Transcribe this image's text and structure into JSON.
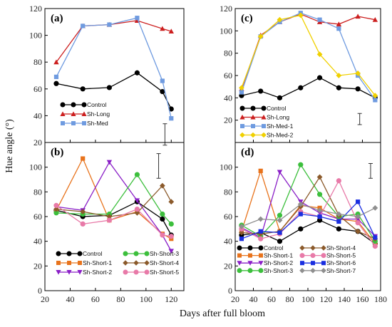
{
  "figure": {
    "xlabel": "Days after full bloom",
    "ylabel": "Hue angle (°)"
  },
  "chart_data": [
    {
      "panel": "(a)",
      "type": "line",
      "xlim": [
        20,
        130
      ],
      "ylim": [
        20,
        120
      ],
      "xticks": [
        20,
        40,
        60,
        80,
        100,
        120
      ],
      "yticks": [
        20,
        40,
        60,
        80,
        100,
        120
      ],
      "series": [
        {
          "name": "Control",
          "color": "#000000",
          "marker": "circle",
          "x": [
            29,
            50,
            71,
            93,
            113,
            120
          ],
          "y": [
            64,
            60,
            61,
            72,
            58,
            45
          ]
        },
        {
          "name": "Sh-Long",
          "color": "#cc1f1f",
          "marker": "triangle-up",
          "x": [
            29,
            50,
            71,
            93,
            113,
            120
          ],
          "y": [
            80,
            107,
            108,
            111,
            105,
            103
          ]
        },
        {
          "name": "Sh-Med",
          "color": "#6f9be0",
          "marker": "square",
          "x": [
            29,
            50,
            71,
            93,
            113,
            120
          ],
          "y": [
            69,
            107,
            108,
            113,
            66,
            38
          ]
        }
      ],
      "errorbar": {
        "x": 115,
        "y": [
          18,
          34
        ]
      }
    },
    {
      "panel": "(b)",
      "type": "line",
      "xlim": [
        20,
        130
      ],
      "ylim": [
        0,
        120
      ],
      "xticks": [
        20,
        40,
        60,
        80,
        100,
        120
      ],
      "yticks": [
        0,
        20,
        40,
        60,
        80,
        100
      ],
      "series": [
        {
          "name": "Control",
          "color": "#000000",
          "marker": "circle",
          "x": [
            29,
            50,
            71,
            93,
            113,
            120
          ],
          "y": [
            65,
            60,
            61,
            72,
            58,
            45
          ]
        },
        {
          "name": "Sh-Short-1",
          "color": "#e8731c",
          "marker": "square",
          "x": [
            29,
            50,
            71,
            93,
            113,
            120
          ],
          "y": [
            65,
            107,
            57,
            64,
            46,
            42
          ]
        },
        {
          "name": "Sh-Short-2",
          "color": "#8a1fc7",
          "marker": "triangle-down",
          "x": [
            29,
            50,
            71,
            93,
            113,
            120
          ],
          "y": [
            68,
            65,
            104,
            73,
            45,
            32
          ]
        },
        {
          "name": "Sh-Short-3",
          "color": "#3cbf3c",
          "marker": "circle",
          "x": [
            29,
            50,
            71,
            93,
            113,
            120
          ],
          "y": [
            63,
            62,
            62,
            94,
            62,
            54
          ]
        },
        {
          "name": "Sh-Short-4",
          "color": "#8b5a2b",
          "marker": "diamond",
          "x": [
            29,
            50,
            71,
            93,
            113,
            120
          ],
          "y": [
            66,
            64,
            60,
            63,
            85,
            72
          ]
        },
        {
          "name": "Sh-Short-5",
          "color": "#e87aa8",
          "marker": "circle",
          "x": [
            29,
            50,
            71,
            93,
            113,
            120
          ],
          "y": [
            69,
            54,
            57,
            66,
            45,
            44
          ]
        }
      ],
      "errorbar": {
        "x": 110,
        "y": [
          91,
          111
        ]
      }
    },
    {
      "panel": "(c)",
      "type": "line",
      "xlim": [
        20,
        180
      ],
      "ylim": [
        0,
        120
      ],
      "xticks": [
        20,
        40,
        60,
        80,
        100,
        120,
        140,
        160,
        180
      ],
      "yticks": [
        20,
        40,
        60,
        80,
        100,
        120
      ],
      "series": [
        {
          "name": "Control",
          "color": "#000000",
          "marker": "circle",
          "x": [
            27,
            48,
            69,
            92,
            113,
            134,
            155,
            174
          ],
          "y": [
            42,
            46,
            40,
            49,
            58,
            49,
            48,
            40
          ]
        },
        {
          "name": "Sh-Long",
          "color": "#cc1f1f",
          "marker": "triangle-up",
          "x": [
            27,
            48,
            69,
            92,
            113,
            134,
            155,
            174
          ],
          "y": [
            48,
            96,
            108,
            115,
            108,
            106,
            113,
            110
          ]
        },
        {
          "name": "Sh-Med-1",
          "color": "#6f9be0",
          "marker": "square",
          "x": [
            27,
            48,
            69,
            92,
            113,
            134,
            155,
            174
          ],
          "y": [
            45,
            95,
            108,
            116,
            110,
            102,
            60,
            38
          ]
        },
        {
          "name": "Sh-Med-2",
          "color": "#f0d000",
          "marker": "diamond",
          "x": [
            27,
            48,
            69,
            92,
            113,
            134,
            155,
            174
          ],
          "y": [
            49,
            95,
            110,
            114,
            79,
            60,
            62,
            42
          ]
        }
      ],
      "errorbar": {
        "x": 157,
        "y": [
          16,
          26
        ]
      }
    },
    {
      "panel": "(d)",
      "type": "line",
      "xlim": [
        20,
        180
      ],
      "ylim": [
        0,
        120
      ],
      "xticks": [
        20,
        40,
        60,
        80,
        100,
        120,
        140,
        160,
        180
      ],
      "yticks": [
        0,
        20,
        40,
        60,
        80,
        100
      ],
      "series": [
        {
          "name": "Control",
          "color": "#000000",
          "marker": "circle",
          "x": [
            27,
            48,
            69,
            92,
            113,
            134,
            155,
            174
          ],
          "y": [
            45,
            47,
            40,
            50,
            57,
            50,
            48,
            38
          ]
        },
        {
          "name": "Sh-Short-1",
          "color": "#e8731c",
          "marker": "square",
          "x": [
            27,
            48,
            69,
            92,
            113,
            134,
            155,
            174
          ],
          "y": [
            48,
            97,
            48,
            69,
            67,
            58,
            56,
            38
          ]
        },
        {
          "name": "Sh-Short-2",
          "color": "#8a1fc7",
          "marker": "triangle-down",
          "x": [
            27,
            48,
            69,
            92,
            113,
            134,
            155,
            174
          ],
          "y": [
            51,
            43,
            96,
            72,
            63,
            58,
            58,
            44
          ]
        },
        {
          "name": "Sh-Short-3",
          "color": "#3cbf3c",
          "marker": "circle",
          "x": [
            27,
            48,
            69,
            92,
            113,
            134,
            155,
            174
          ],
          "y": [
            53,
            44,
            61,
            102,
            78,
            60,
            62,
            40
          ]
        },
        {
          "name": "Sh-Short-4",
          "color": "#8b5a2b",
          "marker": "diamond",
          "x": [
            27,
            48,
            69,
            92,
            113,
            134,
            155,
            174
          ],
          "y": [
            47,
            46,
            48,
            68,
            92,
            61,
            48,
            42
          ]
        },
        {
          "name": "Sh-Short-5",
          "color": "#e87aa8",
          "marker": "circle",
          "x": [
            27,
            48,
            69,
            92,
            113,
            134,
            155,
            174
          ],
          "y": [
            50,
            42,
            46,
            64,
            60,
            89,
            55,
            36
          ]
        },
        {
          "name": "Sh-Short-6",
          "color": "#1a2ee0",
          "marker": "square",
          "x": [
            27,
            48,
            69,
            92,
            113,
            134,
            155,
            174
          ],
          "y": [
            42,
            48,
            47,
            62,
            60,
            56,
            72,
            43
          ]
        },
        {
          "name": "Sh-Short-7",
          "color": "#8f8f8f",
          "marker": "diamond",
          "x": [
            27,
            48,
            69,
            92,
            113,
            134,
            155,
            174
          ],
          "y": [
            52,
            58,
            57,
            70,
            65,
            62,
            60,
            67
          ]
        }
      ],
      "errorbar": {
        "x": 169,
        "y": [
          91,
          103
        ]
      }
    }
  ]
}
